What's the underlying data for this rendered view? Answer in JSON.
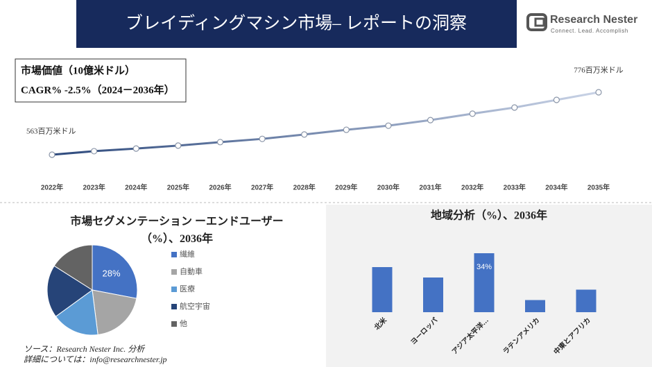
{
  "header": {
    "title": "ブレイディングマシン市場– レポートの洞察",
    "logo": "Research Nester",
    "tagline": "Connect. Lead. Accomplish"
  },
  "info": {
    "line1": "市場価値（10億米ドル）",
    "line2": "CAGR% -2.5%（2024－2036年）"
  },
  "footer": {
    "source": "ソース：Research Nester Inc. 分析",
    "contact": "詳細については：info@researchnester.jp"
  },
  "chart_data": [
    {
      "type": "line",
      "categories": [
        "2022年",
        "2023年",
        "2024年",
        "2025年",
        "2026年",
        "2027年",
        "2028年",
        "2029年",
        "2030年",
        "2031年",
        "2032年",
        "2033年",
        "2034年",
        "2035年"
      ],
      "values": [
        563,
        575,
        584,
        594,
        606,
        617,
        632,
        648,
        662,
        681,
        703,
        724,
        750,
        776
      ],
      "value_labels": [
        "563百万米ドル",
        null,
        null,
        null,
        null,
        null,
        null,
        null,
        null,
        null,
        null,
        null,
        null,
        "776百万米ドル"
      ],
      "color": "#2e4a7d"
    },
    {
      "type": "pie",
      "title": "市場セグメンテーション ーエンドユーザー（%）、2036年",
      "categories": [
        "繊維",
        "自動車",
        "医療",
        "航空宇宙",
        "他"
      ],
      "values": [
        28,
        20,
        17,
        19,
        16
      ],
      "value_labels": [
        "28%",
        null,
        null,
        null,
        null
      ],
      "colors": [
        "#4472c4",
        "#a5a5a5",
        "#5b9bd5",
        "#264478",
        "#636363"
      ]
    },
    {
      "type": "bar",
      "title": "地域分析（%）、2036年",
      "categories": [
        "北米",
        "ヨーロッパ",
        "アジア太平洋…",
        "ラテンアメリカ",
        "中東とアフリカ"
      ],
      "values": [
        26,
        20,
        34,
        7,
        13
      ],
      "value_labels": [
        null,
        null,
        "34%",
        null,
        null
      ],
      "color": "#4472c4"
    }
  ]
}
